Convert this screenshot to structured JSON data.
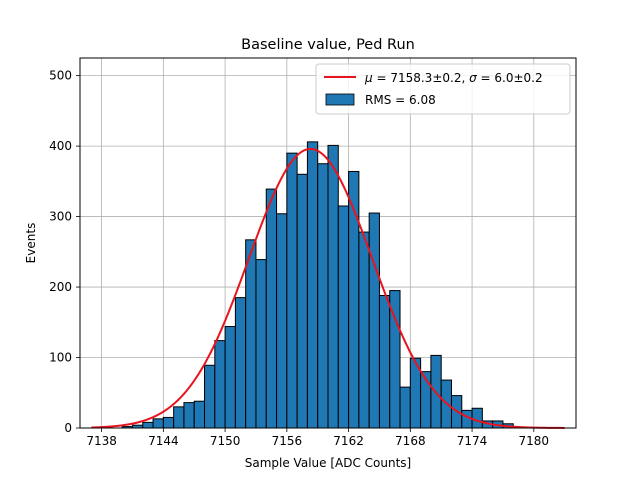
{
  "chart_data": {
    "type": "bar",
    "title": "Baseline value, Ped Run",
    "xlabel": "Sample Value [ADC Counts]",
    "ylabel": "Events",
    "xlim": [
      7135.9,
      7184.1
    ],
    "ylim": [
      0,
      525
    ],
    "xticks": [
      7138,
      7144,
      7150,
      7156,
      7162,
      7168,
      7174,
      7180
    ],
    "yticks": [
      0,
      100,
      200,
      300,
      400,
      500
    ],
    "grid": true,
    "legend_placement": "top-right",
    "bins": [
      [
        7138,
        7139,
        1
      ],
      [
        7139,
        7140,
        0
      ],
      [
        7140,
        7141,
        2
      ],
      [
        7141,
        7142,
        4
      ],
      [
        7142,
        7143,
        8
      ],
      [
        7143,
        7144,
        13
      ],
      [
        7144,
        7145,
        15
      ],
      [
        7145,
        7146,
        30
      ],
      [
        7146,
        7147,
        36
      ],
      [
        7147,
        7148,
        38
      ],
      [
        7148,
        7149,
        89
      ],
      [
        7149,
        7150,
        124
      ],
      [
        7150,
        7151,
        144
      ],
      [
        7151,
        7152,
        185
      ],
      [
        7152,
        7153,
        267
      ],
      [
        7153,
        7154,
        239
      ],
      [
        7154,
        7155,
        339
      ],
      [
        7155,
        7156,
        304
      ],
      [
        7156,
        7157,
        390
      ],
      [
        7157,
        7158,
        360
      ],
      [
        7158,
        7159,
        406
      ],
      [
        7159,
        7160,
        375
      ],
      [
        7160,
        7161,
        401
      ],
      [
        7161,
        7162,
        315
      ],
      [
        7162,
        7163,
        364
      ],
      [
        7163,
        7164,
        278
      ],
      [
        7164,
        7165,
        305
      ],
      [
        7165,
        7166,
        188
      ],
      [
        7166,
        7167,
        195
      ],
      [
        7167,
        7168,
        58
      ],
      [
        7168,
        7169,
        99
      ],
      [
        7169,
        7170,
        80
      ],
      [
        7170,
        7171,
        103
      ],
      [
        7171,
        7172,
        68
      ],
      [
        7172,
        7173,
        46
      ],
      [
        7173,
        7174,
        25
      ],
      [
        7174,
        7175,
        28
      ],
      [
        7175,
        7176,
        10
      ],
      [
        7176,
        7177,
        10
      ],
      [
        7177,
        7178,
        6
      ]
    ],
    "bar_color": "#1f77b4",
    "bar_edge_color": "#000000",
    "fit": {
      "mu": 7158.3,
      "sigma": 6.0,
      "amplitude": 396,
      "xrange": [
        7137,
        7183
      ],
      "color": "#e8141e"
    },
    "legend": [
      {
        "kind": "line",
        "color": "#e8141e",
        "label_mu": "μ",
        "label_eq1": " = 7158.3±0.2, ",
        "label_sigma": "σ",
        "label_eq2": " = 6.0±0.2"
      },
      {
        "kind": "patch",
        "color": "#1f77b4",
        "label": "RMS = 6.08"
      }
    ]
  }
}
